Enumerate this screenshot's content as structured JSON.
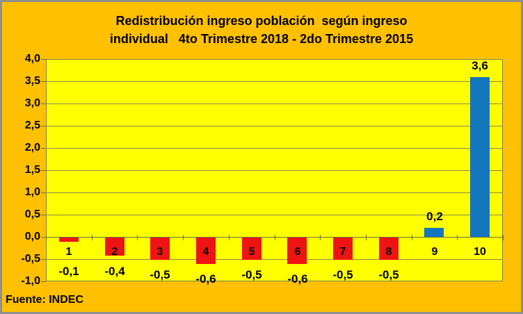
{
  "frame": {
    "background": "#FFC000",
    "border_color": "#8F8F8F"
  },
  "title": {
    "line1": "Redistribución ingreso población  según ingreso",
    "line2": "individual   4to Trimestre 2018 - 2do Trimestre 2015"
  },
  "source": "Fuente: INDEC",
  "chart_data": {
    "type": "bar",
    "title": "Redistribución ingreso población según ingreso individual 4to Trimestre 2018 - 2do Trimestre 2015",
    "categories": [
      "1",
      "2",
      "3",
      "4",
      "5",
      "6",
      "7",
      "8",
      "9",
      "10"
    ],
    "values": [
      -0.1,
      -0.4,
      -0.5,
      -0.6,
      -0.5,
      -0.6,
      -0.5,
      -0.5,
      0.2,
      3.6
    ],
    "value_labels": [
      "-0,1",
      "-0,4",
      "-0,5",
      "-0,6",
      "-0,5",
      "-0,6",
      "-0,5",
      "-0,5",
      "0,2",
      "3,6"
    ],
    "xlabel": "",
    "ylabel": "",
    "ylim": [
      -1.0,
      4.0
    ],
    "ytick_step": 0.5,
    "ytick_labels": [
      "4,0",
      "3,5",
      "3,0",
      "2,5",
      "2,0",
      "1,5",
      "1,0",
      "0,5",
      "0,0",
      "-0,5",
      "-1,0"
    ],
    "grid": true,
    "legend": false,
    "colors": {
      "positive_bar": "#1477BE",
      "negative_bar": "#EE1414",
      "plot_background": "#FFFF00",
      "outer_background": "#FFC000",
      "gridline": "#8A8A52"
    }
  }
}
